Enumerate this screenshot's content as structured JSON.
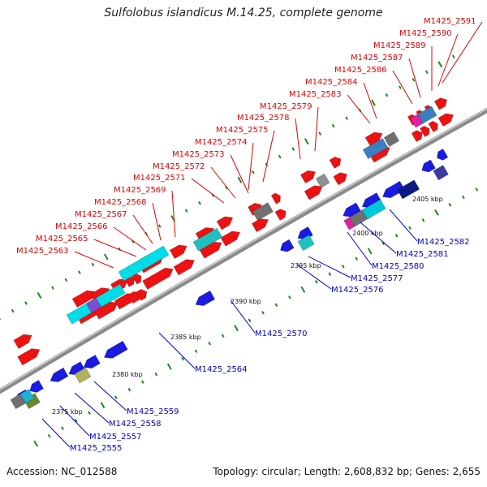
{
  "title": "Sulfolobus islandicus M.14.25, complete genome",
  "accession_label": "Accession: NC_012588",
  "summary_label": "Topology: circular; Length: 2,608,832 bp; Genes: 2,655",
  "scale_labels": [
    "2375 kbp",
    "2380 kbp",
    "2385 kbp",
    "2390 kbp",
    "2395 kbp",
    "2400 kbp",
    "2405 kbp"
  ],
  "colors": {
    "forward_label": "#e00000",
    "reverse_label": "#0000c8",
    "backbone": "#8a8a8a",
    "forward_gene": "#ee1111",
    "reverse_gene": "#1a1ae0",
    "tick": "#1a8a1a"
  },
  "forward_labels": [
    "M1425_2563",
    "M1425_2565",
    "M1425_2566",
    "M1425_2567",
    "M1425_2568",
    "M1425_2569",
    "M1425_2571",
    "M1425_2572",
    "M1425_2573",
    "M1425_2574",
    "M1425_2575",
    "M1425_2578",
    "M1425_2579",
    "M1425_2583",
    "M1425_2584",
    "M1425_2586",
    "M1425_2587",
    "M1425_2589",
    "M1425_2590",
    "M1425_2591"
  ],
  "reverse_labels": [
    "M1425_2555",
    "M1425_2557",
    "M1425_2558",
    "M1425_2559",
    "M1425_2564",
    "M1425_2570",
    "M1425_2576",
    "M1425_2577",
    "M1425_2580",
    "M1425_2581",
    "M1425_2582"
  ]
}
